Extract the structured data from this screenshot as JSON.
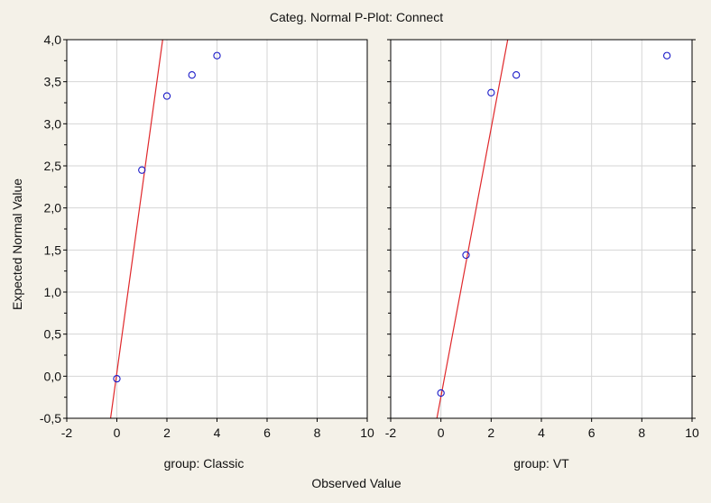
{
  "chart_data": {
    "type": "scatter",
    "title": "Categ. Normal P-Plot:  Connect",
    "xlabel": "Observed Value",
    "ylabel": "Expected Normal Value",
    "colors": {
      "background": "#f4f1e8",
      "plot_bg": "#ffffff",
      "grid": "#d6d6d6",
      "point": "#1a1ac8",
      "line": "#e0282b"
    },
    "panels": [
      {
        "name": "group: Classic",
        "xlim": [
          -2,
          10
        ],
        "ylim": [
          -0.5,
          4.0
        ],
        "x_ticks": [
          "-2",
          "0",
          "2",
          "4",
          "6",
          "8",
          "10"
        ],
        "y_ticks": [
          "-0,5",
          "0,0",
          "0,5",
          "1,0",
          "1,5",
          "2,0",
          "2,5",
          "3,0",
          "3,5",
          "4,0"
        ],
        "points": [
          {
            "x": 0,
            "y": -0.03
          },
          {
            "x": 1,
            "y": 2.45
          },
          {
            "x": 2,
            "y": 3.33
          },
          {
            "x": 3,
            "y": 3.58
          },
          {
            "x": 4,
            "y": 3.81
          }
        ],
        "fit_line": [
          {
            "x": -0.25,
            "y": -0.5
          },
          {
            "x": 1.83,
            "y": 4.0
          }
        ]
      },
      {
        "name": "group: VT",
        "xlim": [
          -2,
          10
        ],
        "ylim": [
          -0.5,
          4.0
        ],
        "x_ticks": [
          "-2",
          "0",
          "2",
          "4",
          "6",
          "8",
          "10"
        ],
        "y_ticks": [],
        "points": [
          {
            "x": 0,
            "y": -0.2
          },
          {
            "x": 1,
            "y": 1.44
          },
          {
            "x": 2,
            "y": 3.37
          },
          {
            "x": 3,
            "y": 3.58
          },
          {
            "x": 9,
            "y": 3.81
          }
        ],
        "fit_line": [
          {
            "x": -0.16,
            "y": -0.5
          },
          {
            "x": 2.66,
            "y": 4.0
          }
        ]
      }
    ]
  }
}
